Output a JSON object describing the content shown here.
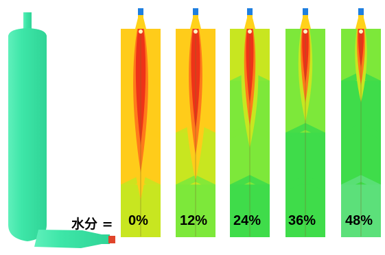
{
  "label_prefix": "水分 =",
  "panels": [
    {
      "label": "0%",
      "moisture_pct": 0
    },
    {
      "label": "12%",
      "moisture_pct": 12
    },
    {
      "label": "24%",
      "moisture_pct": 24
    },
    {
      "label": "36%",
      "moisture_pct": 36
    },
    {
      "label": "48%",
      "moisture_pct": 48
    }
  ],
  "colors": {
    "vessel": "#3ee6a8",
    "vessel_edge": "#2bc98e",
    "core": "#ee3318",
    "hot": "#ff7a1a",
    "warm": "#ffcc1a",
    "mild": "#c8e620",
    "cool": "#7de83a",
    "cold": "#3fdc4a",
    "nozzle": "#1f7fe0"
  }
}
